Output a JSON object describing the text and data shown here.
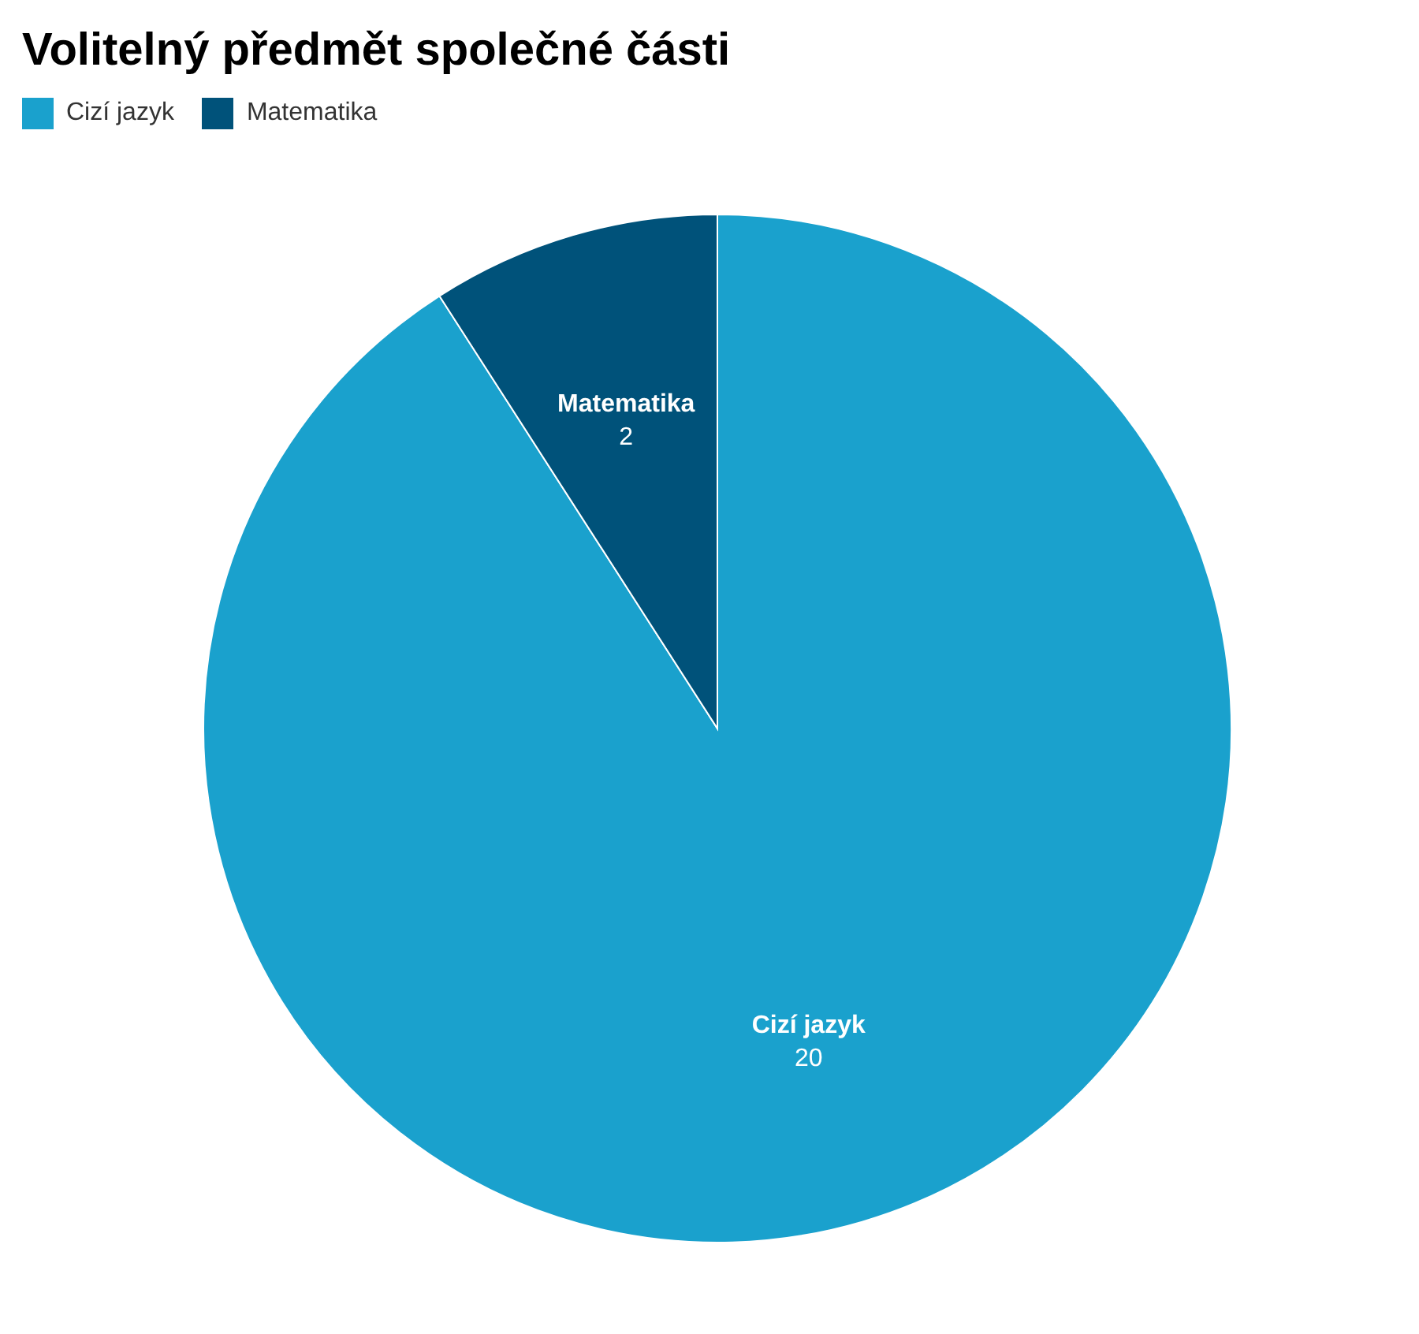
{
  "chart_data": {
    "type": "pie",
    "title": "Volitelný předmět společné části",
    "categories": [
      "Cizí jazyk",
      "Matematika"
    ],
    "values": [
      20,
      2
    ],
    "colors": [
      "#1aa1cd",
      "#00527a"
    ],
    "legend": "top left",
    "data_labels": true
  }
}
